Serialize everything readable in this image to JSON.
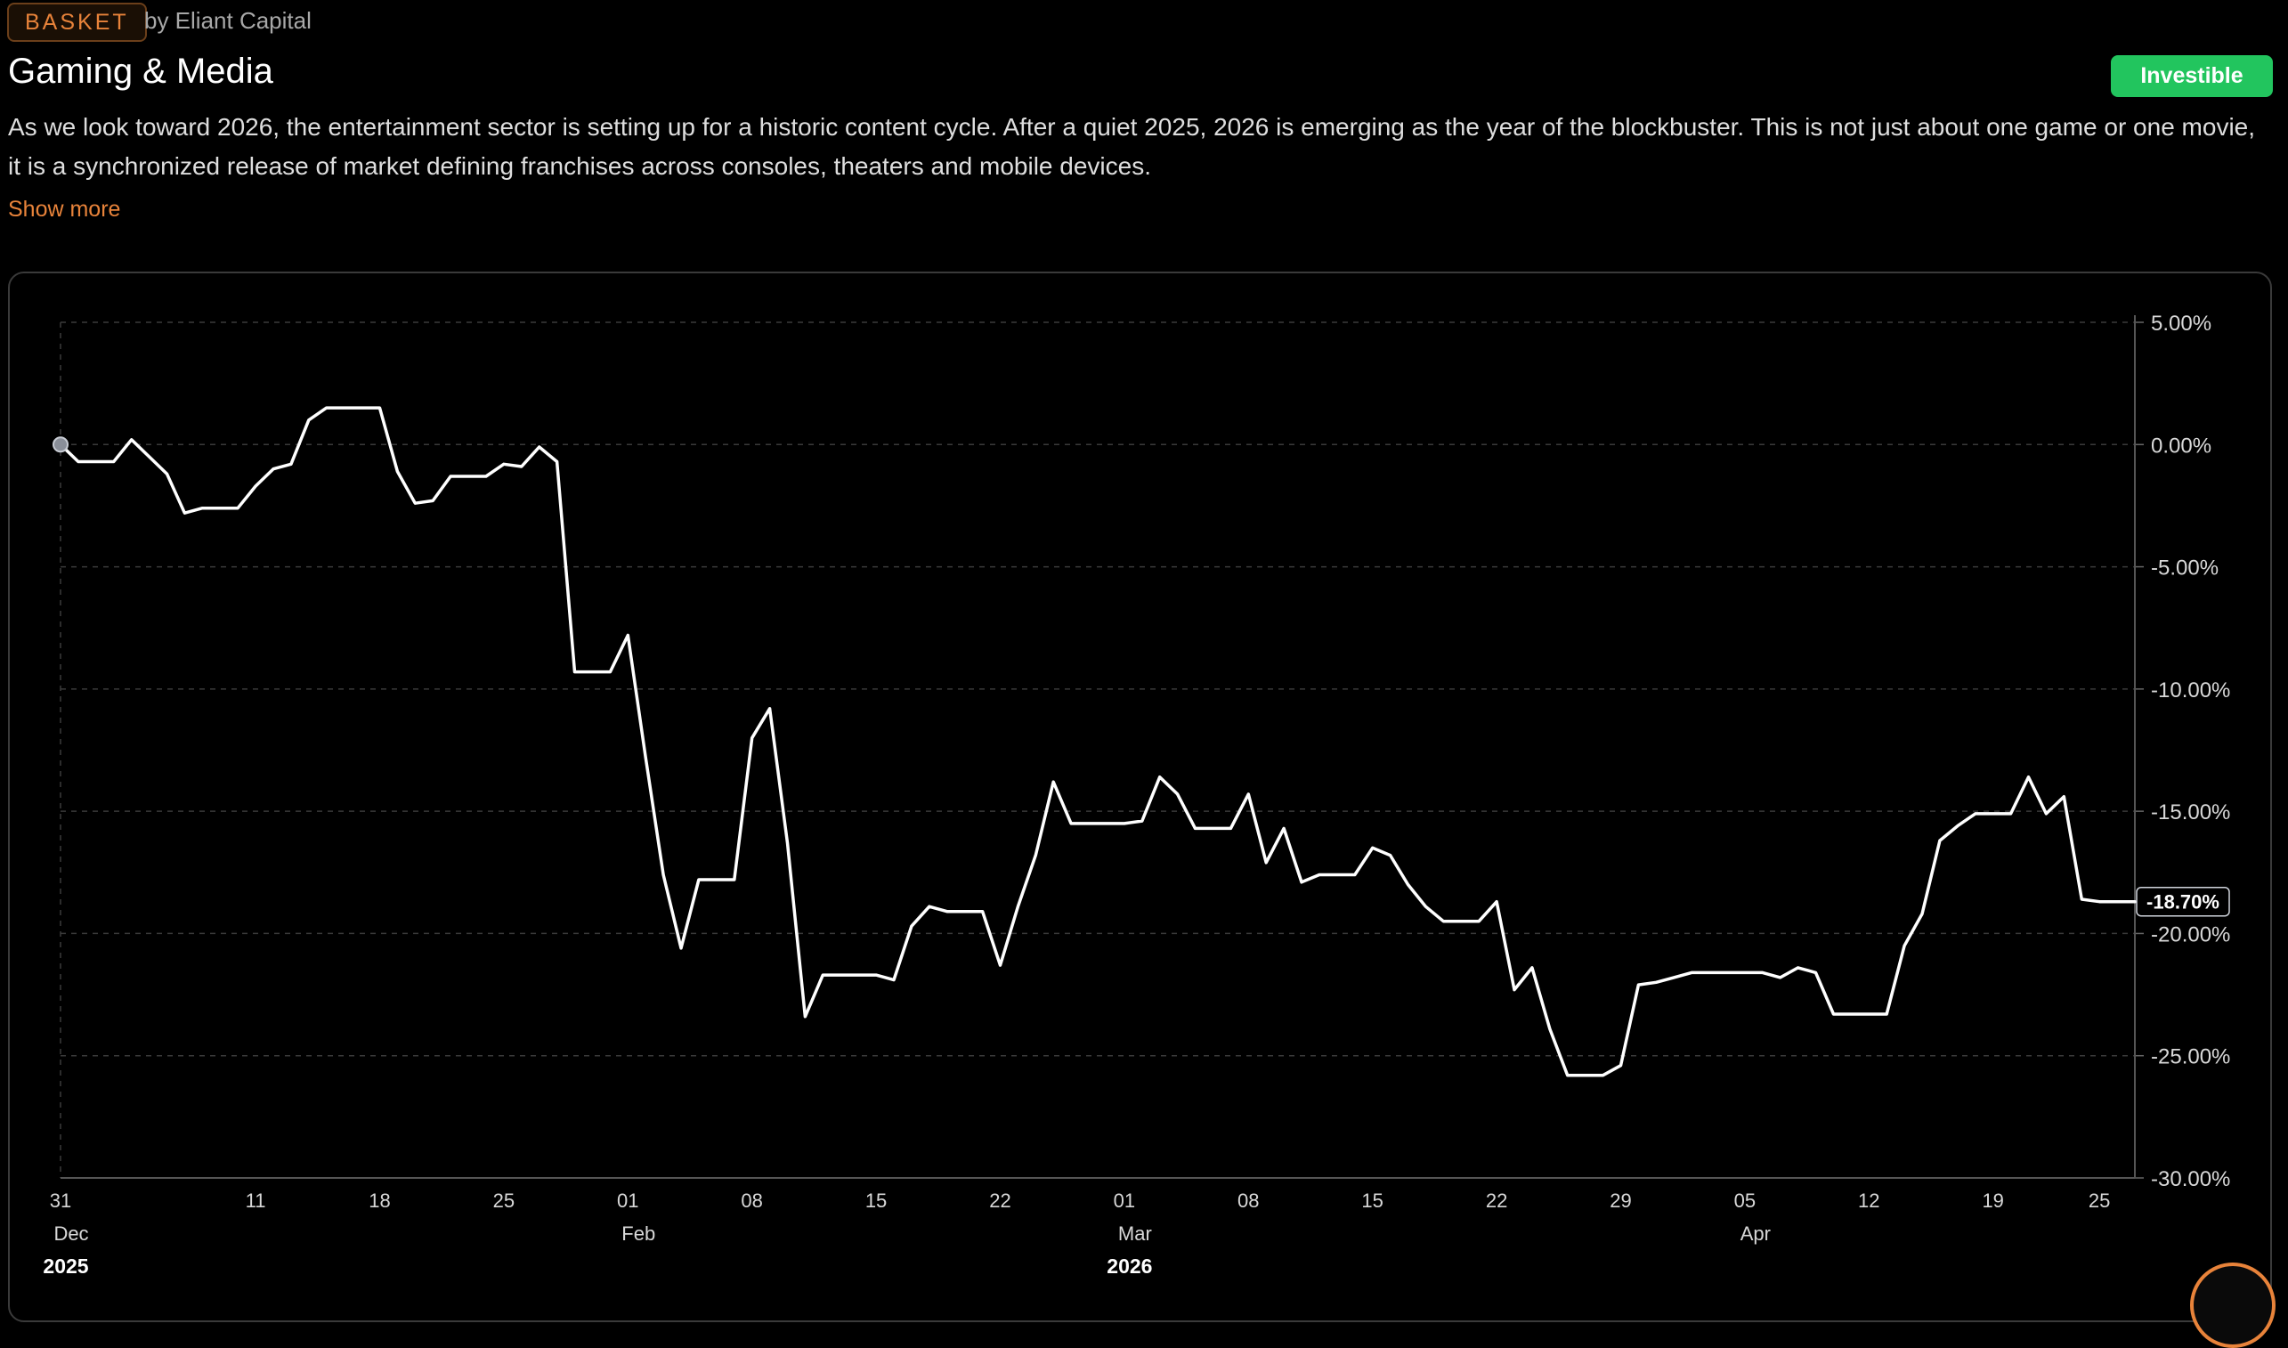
{
  "header": {
    "tag": "BASKET",
    "byline": "by Eliant Capital",
    "title": "Gaming & Media",
    "status_button": "Investible",
    "description": "As we look toward 2026, the entertainment sector is setting up for a historic content cycle. After a quiet 2025, 2026 is emerging as the year of the blockbuster. This is not just about one game or one movie, it is a synchronized release of market defining franchises across consoles, theaters and mobile devices.",
    "show_more": "Show more"
  },
  "colors": {
    "accent": "#e8833a",
    "status_green": "#22c55e",
    "line": "#ffffff",
    "background": "#000000"
  },
  "chart_data": {
    "type": "line",
    "title": "",
    "xlabel": "",
    "ylabel": "",
    "y_axis_position": "right",
    "ylim": [
      -30,
      5
    ],
    "y_ticks": [
      5,
      0,
      -5,
      -10,
      -15,
      -20,
      -25,
      -30
    ],
    "y_tick_labels": [
      "5.00%",
      "0.00%",
      "-5.00%",
      "-10.00%",
      "-15.00%",
      "-20.00%",
      "-25.00%",
      "-30.00%"
    ],
    "xlim": [
      "2025-12-31",
      "2026-04-27"
    ],
    "x_ticks": [
      {
        "date": "2025-12-31",
        "day": "31",
        "month": "Dec",
        "year": "2025"
      },
      {
        "date": "2026-01-11",
        "day": "11"
      },
      {
        "date": "2026-01-18",
        "day": "18"
      },
      {
        "date": "2026-01-25",
        "day": "25"
      },
      {
        "date": "2026-02-01",
        "day": "01",
        "month": "Feb"
      },
      {
        "date": "2026-02-08",
        "day": "08"
      },
      {
        "date": "2026-02-15",
        "day": "15"
      },
      {
        "date": "2026-02-22",
        "day": "22"
      },
      {
        "date": "2026-03-01",
        "day": "01",
        "month": "Mar",
        "year": "2026"
      },
      {
        "date": "2026-03-08",
        "day": "08"
      },
      {
        "date": "2026-03-15",
        "day": "15"
      },
      {
        "date": "2026-03-22",
        "day": "22"
      },
      {
        "date": "2026-03-29",
        "day": "29"
      },
      {
        "date": "2026-04-05",
        "day": "05",
        "month": "Apr"
      },
      {
        "date": "2026-04-12",
        "day": "12"
      },
      {
        "date": "2026-04-19",
        "day": "19"
      },
      {
        "date": "2026-04-25",
        "day": "25"
      }
    ],
    "last_value_label": "-18.70%",
    "grid": true,
    "series": [
      {
        "x": [
          "2025-12-31",
          "2026-01-01",
          "2026-01-02",
          "2026-01-03",
          "2026-01-04",
          "2026-01-05",
          "2026-01-06",
          "2026-01-07",
          "2026-01-08",
          "2026-01-09",
          "2026-01-10",
          "2026-01-11",
          "2026-01-12",
          "2026-01-13",
          "2026-01-14",
          "2026-01-15",
          "2026-01-16",
          "2026-01-17",
          "2026-01-18",
          "2026-01-19",
          "2026-01-20",
          "2026-01-21",
          "2026-01-22",
          "2026-01-23",
          "2026-01-24",
          "2026-01-25",
          "2026-01-26",
          "2026-01-27",
          "2026-01-28",
          "2026-01-29",
          "2026-01-30",
          "2026-01-31",
          "2026-02-01",
          "2026-02-02",
          "2026-02-03",
          "2026-02-04",
          "2026-02-05",
          "2026-02-06",
          "2026-02-07",
          "2026-02-08",
          "2026-02-09",
          "2026-02-10",
          "2026-02-11",
          "2026-02-12",
          "2026-02-13",
          "2026-02-14",
          "2026-02-15",
          "2026-02-16",
          "2026-02-17",
          "2026-02-18",
          "2026-02-19",
          "2026-02-20",
          "2026-02-21",
          "2026-02-22",
          "2026-02-23",
          "2026-02-24",
          "2026-02-25",
          "2026-02-26",
          "2026-02-27",
          "2026-02-28",
          "2026-03-01",
          "2026-03-02",
          "2026-03-03",
          "2026-03-04",
          "2026-03-05",
          "2026-03-06",
          "2026-03-07",
          "2026-03-08",
          "2026-03-09",
          "2026-03-10",
          "2026-03-11",
          "2026-03-12",
          "2026-03-13",
          "2026-03-14",
          "2026-03-15",
          "2026-03-16",
          "2026-03-17",
          "2026-03-18",
          "2026-03-19",
          "2026-03-20",
          "2026-03-21",
          "2026-03-22",
          "2026-03-23",
          "2026-03-24",
          "2026-03-25",
          "2026-03-26",
          "2026-03-27",
          "2026-03-28",
          "2026-03-29",
          "2026-03-30",
          "2026-03-31",
          "2026-04-01",
          "2026-04-02",
          "2026-04-03",
          "2026-04-04",
          "2026-04-05",
          "2026-04-06",
          "2026-04-07",
          "2026-04-08",
          "2026-04-09",
          "2026-04-10",
          "2026-04-11",
          "2026-04-12",
          "2026-04-13",
          "2026-04-14",
          "2026-04-15",
          "2026-04-16",
          "2026-04-17",
          "2026-04-18",
          "2026-04-19",
          "2026-04-20",
          "2026-04-21",
          "2026-04-22",
          "2026-04-23",
          "2026-04-24",
          "2026-04-25",
          "2026-04-26",
          "2026-04-27"
        ],
        "values": [
          0.0,
          -0.7,
          -0.7,
          -0.7,
          0.2,
          -0.5,
          -1.2,
          -2.8,
          -2.6,
          -2.6,
          -2.6,
          -1.7,
          -1.0,
          -0.8,
          1.0,
          1.5,
          1.5,
          1.5,
          1.5,
          -1.1,
          -2.4,
          -2.3,
          -1.3,
          -1.3,
          -1.3,
          -0.8,
          -0.9,
          -0.1,
          -0.7,
          -9.3,
          -9.3,
          -9.3,
          -7.8,
          -12.8,
          -17.6,
          -20.6,
          -17.8,
          -17.8,
          -17.8,
          -12.0,
          -10.8,
          -16.3,
          -23.4,
          -21.7,
          -21.7,
          -21.7,
          -21.7,
          -21.9,
          -19.7,
          -18.9,
          -19.1,
          -19.1,
          -19.1,
          -21.3,
          -18.9,
          -16.8,
          -13.8,
          -15.5,
          -15.5,
          -15.5,
          -15.5,
          -15.4,
          -13.6,
          -14.3,
          -15.7,
          -15.7,
          -15.7,
          -14.3,
          -17.1,
          -15.7,
          -17.9,
          -17.6,
          -17.6,
          -17.6,
          -16.5,
          -16.8,
          -18.0,
          -18.9,
          -19.5,
          -19.5,
          -19.5,
          -18.7,
          -22.3,
          -21.4,
          -23.9,
          -25.8,
          -25.8,
          -25.8,
          -25.4,
          -22.1,
          -22.0,
          -21.8,
          -21.6,
          -21.6,
          -21.6,
          -21.6,
          -21.6,
          -21.8,
          -21.4,
          -21.6,
          -23.3,
          -23.3,
          -23.3,
          -23.3,
          -20.5,
          -19.2,
          -16.2,
          -15.6,
          -15.1,
          -15.1,
          -15.1,
          -13.6,
          -15.1,
          -14.4,
          -18.6,
          -18.7,
          -18.7,
          -18.7
        ]
      }
    ]
  }
}
